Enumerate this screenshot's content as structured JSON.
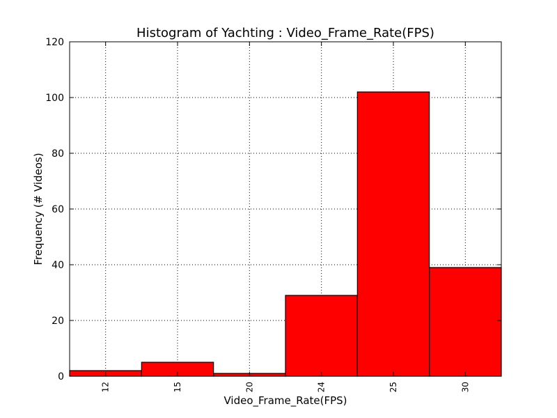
{
  "chart_data": {
    "type": "bar",
    "title": "Histogram of Yachting : Video_Frame_Rate(FPS)",
    "xlabel": "Video_Frame_Rate(FPS)",
    "ylabel": "Frequency (# Videos)",
    "categories": [
      "12",
      "15",
      "20",
      "24",
      "25",
      "30"
    ],
    "values": [
      2,
      5,
      1,
      29,
      102,
      39
    ],
    "ylim": [
      0,
      120
    ],
    "yticks": [
      "0",
      "20",
      "40",
      "60",
      "80",
      "100",
      "120"
    ],
    "grid": true,
    "bar_color": "#ff0000"
  }
}
